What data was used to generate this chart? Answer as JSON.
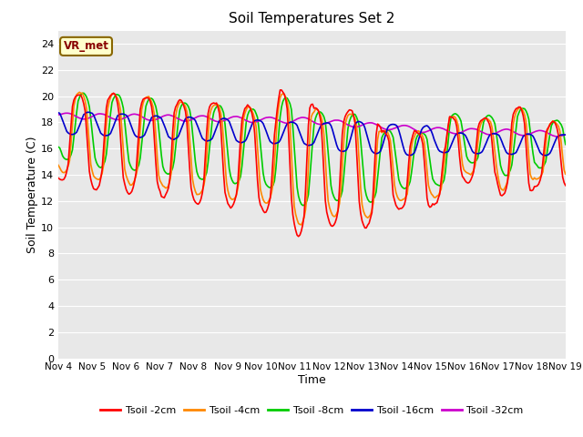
{
  "title": "Soil Temperatures Set 2",
  "xlabel": "Time",
  "ylabel": "Soil Temperature (C)",
  "ylim": [
    0,
    25
  ],
  "yticks": [
    0,
    2,
    4,
    6,
    8,
    10,
    12,
    14,
    16,
    18,
    20,
    22,
    24
  ],
  "xtick_labels": [
    "Nov 4",
    "Nov 5",
    "Nov 6",
    "Nov 7",
    "Nov 8",
    "Nov 9",
    "Nov 10",
    "Nov 11",
    "Nov 12",
    "Nov 13",
    "Nov 14",
    "Nov 15",
    "Nov 16",
    "Nov 17",
    "Nov 18",
    "Nov 19"
  ],
  "annotation_text": "VR_met",
  "annotation_box_color": "#ffffcc",
  "annotation_box_edge_color": "#886600",
  "annotation_text_color": "#880000",
  "bg_color": "#e8e8e8",
  "line_colors": [
    "#ff0000",
    "#ff8800",
    "#00cc00",
    "#0000cc",
    "#cc00cc"
  ],
  "line_labels": [
    "Tsoil -2cm",
    "Tsoil -4cm",
    "Tsoil -8cm",
    "Tsoil -16cm",
    "Tsoil -32cm"
  ],
  "line_width": 1.2
}
